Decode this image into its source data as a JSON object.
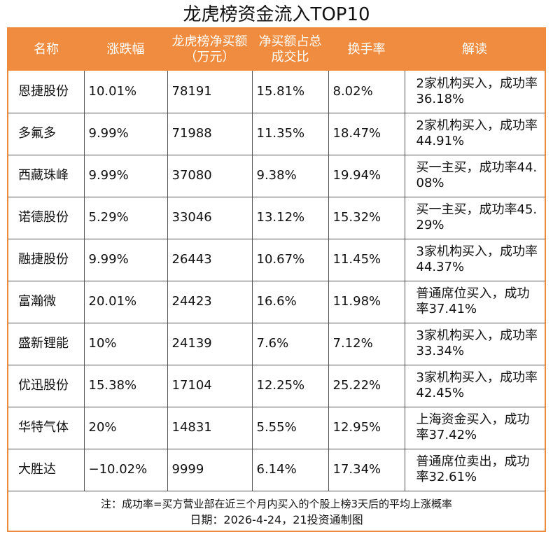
{
  "title": "龙虎榜资金流入TOP10",
  "headers": [
    "名称",
    "涨跌幅",
    "龙虎榜净买额（万元）",
    "净买额占总成交比",
    "换手率",
    "解读"
  ],
  "rows": [
    {
      "name": "恩捷股份",
      "change": "10.01%",
      "net_buy": "78191",
      "ratio": "15.81%",
      "turnover": "8.02%",
      "note": "2家机构买入，成功率36.18%"
    },
    {
      "name": "多氟多",
      "change": "9.99%",
      "net_buy": "71988",
      "ratio": "11.35%",
      "turnover": "18.47%",
      "note": "2家机构买入，成功率44.91%"
    },
    {
      "name": "西藏珠峰",
      "change": "9.99%",
      "net_buy": "37080",
      "ratio": "9.38%",
      "turnover": "19.94%",
      "note": "买一主买，成功率44.08%"
    },
    {
      "name": "诺德股份",
      "change": "5.29%",
      "net_buy": "33046",
      "ratio": "13.12%",
      "turnover": "15.32%",
      "note": "买一主买，成功率45.29%"
    },
    {
      "name": "融捷股份",
      "change": "9.99%",
      "net_buy": "26443",
      "ratio": "10.67%",
      "turnover": "11.45%",
      "note": "3家机构买入，成功率44.37%"
    },
    {
      "name": "富瀚微",
      "change": "20.01%",
      "net_buy": "24423",
      "ratio": "16.6%",
      "turnover": "11.98%",
      "note": "普通席位买入，成功率37.41%"
    },
    {
      "name": "盛新锂能",
      "change": "10%",
      "net_buy": "24139",
      "ratio": "7.6%",
      "turnover": "7.12%",
      "note": "3家机构买入，成功率33.34%"
    },
    {
      "name": "优迅股份",
      "change": "15.38%",
      "net_buy": "17104",
      "ratio": "12.25%",
      "turnover": "25.22%",
      "note": "3家机构买入，成功率42.45%"
    },
    {
      "name": "华特气体",
      "change": "20%",
      "net_buy": "14831",
      "ratio": "5.55%",
      "turnover": "12.95%",
      "note": "上海资金买入，成功率37.42%"
    },
    {
      "name": "大胜达",
      "change": "−10.02%",
      "net_buy": "9999",
      "ratio": "6.14%",
      "turnover": "17.34%",
      "note": "普通席位卖出，成功率32.61%"
    }
  ],
  "footnote": "注：成功率=买方营业部在近三个月内买入的个股上榜3天后的平均上涨概率",
  "source": "日期：2026-4-24，21投资通制图",
  "colors": {
    "header_bg": "#ef8c3f",
    "frame": "#ee8a3d",
    "header_text": "#ffffff"
  }
}
